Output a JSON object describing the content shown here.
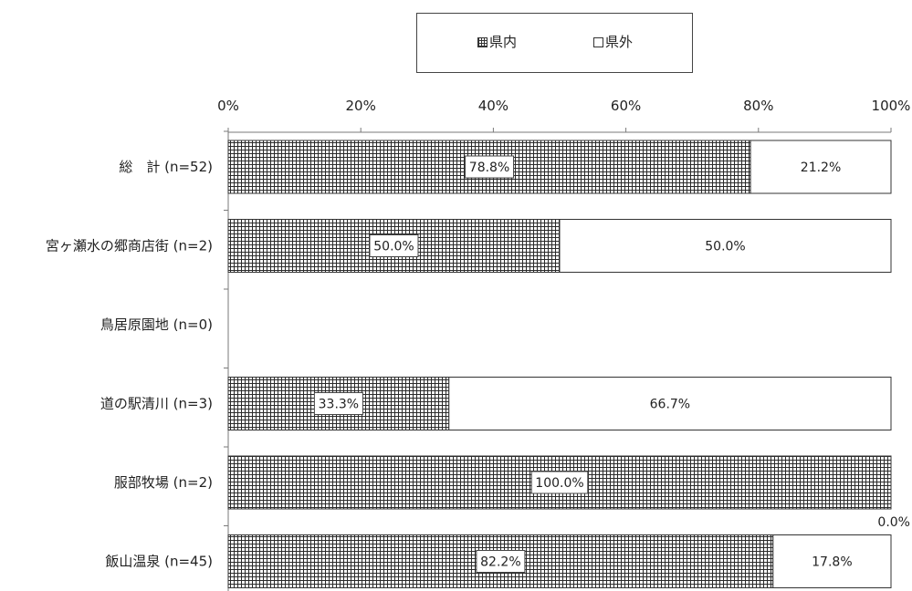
{
  "chart_data": {
    "type": "bar",
    "orientation": "horizontal",
    "stacked": "percent",
    "title": "",
    "xlabel": "",
    "ylabel": "",
    "xlim": [
      0,
      100
    ],
    "x_ticks": [
      "0%",
      "20%",
      "40%",
      "60%",
      "80%",
      "100%"
    ],
    "legend_position": "top-center",
    "grid": false,
    "categories": [
      "総　計 (n=52)",
      "宮ヶ瀬水の郷商店街 (n=2)",
      "鳥居原園地 (n=0)",
      "道の駅清川 (n=3)",
      "服部牧場 (n=2)",
      "飯山温泉 (n=45)"
    ],
    "series": [
      {
        "name": "県内",
        "pattern": "grid",
        "values": [
          78.8,
          50.0,
          null,
          33.3,
          100.0,
          82.2
        ],
        "labels": [
          "78.8%",
          "50.0%",
          "",
          "33.3%",
          "100.0%",
          "82.2%"
        ]
      },
      {
        "name": "県外",
        "pattern": "white",
        "values": [
          21.2,
          50.0,
          null,
          66.7,
          0.0,
          17.8
        ],
        "labels": [
          "21.2%",
          "50.0%",
          "",
          "66.7%",
          "0.0%",
          "17.8%"
        ]
      }
    ]
  }
}
